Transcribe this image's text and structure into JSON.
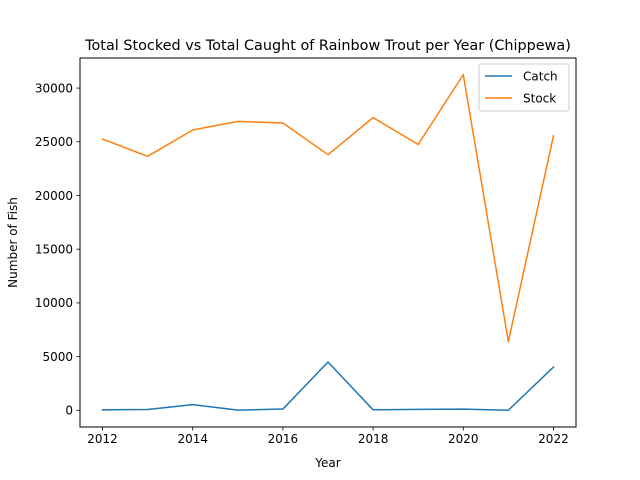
{
  "chart_data": {
    "type": "line",
    "title": "Total Stocked vs Total Caught of Rainbow Trout per Year (Chippewa)",
    "xlabel": "Year",
    "ylabel": "Number of Fish",
    "x": [
      2012,
      2013,
      2014,
      2015,
      2016,
      2017,
      2018,
      2019,
      2020,
      2021,
      2022
    ],
    "xlim": [
      2011.5,
      2022.5
    ],
    "ylim": [
      -1550,
      32800
    ],
    "xticks": [
      2012,
      2014,
      2016,
      2018,
      2020,
      2022
    ],
    "yticks": [
      0,
      5000,
      10000,
      15000,
      20000,
      25000,
      30000
    ],
    "grid": false,
    "legend_position": "top-right",
    "series": [
      {
        "name": "Catch",
        "color": "#1f77b4",
        "values": [
          50,
          80,
          530,
          20,
          120,
          4500,
          50,
          90,
          110,
          10,
          4030
        ]
      },
      {
        "name": "Stock",
        "color": "#ff7f0e",
        "values": [
          25250,
          23650,
          26100,
          26900,
          26750,
          23800,
          27250,
          24750,
          31250,
          6400,
          25550
        ]
      }
    ]
  }
}
